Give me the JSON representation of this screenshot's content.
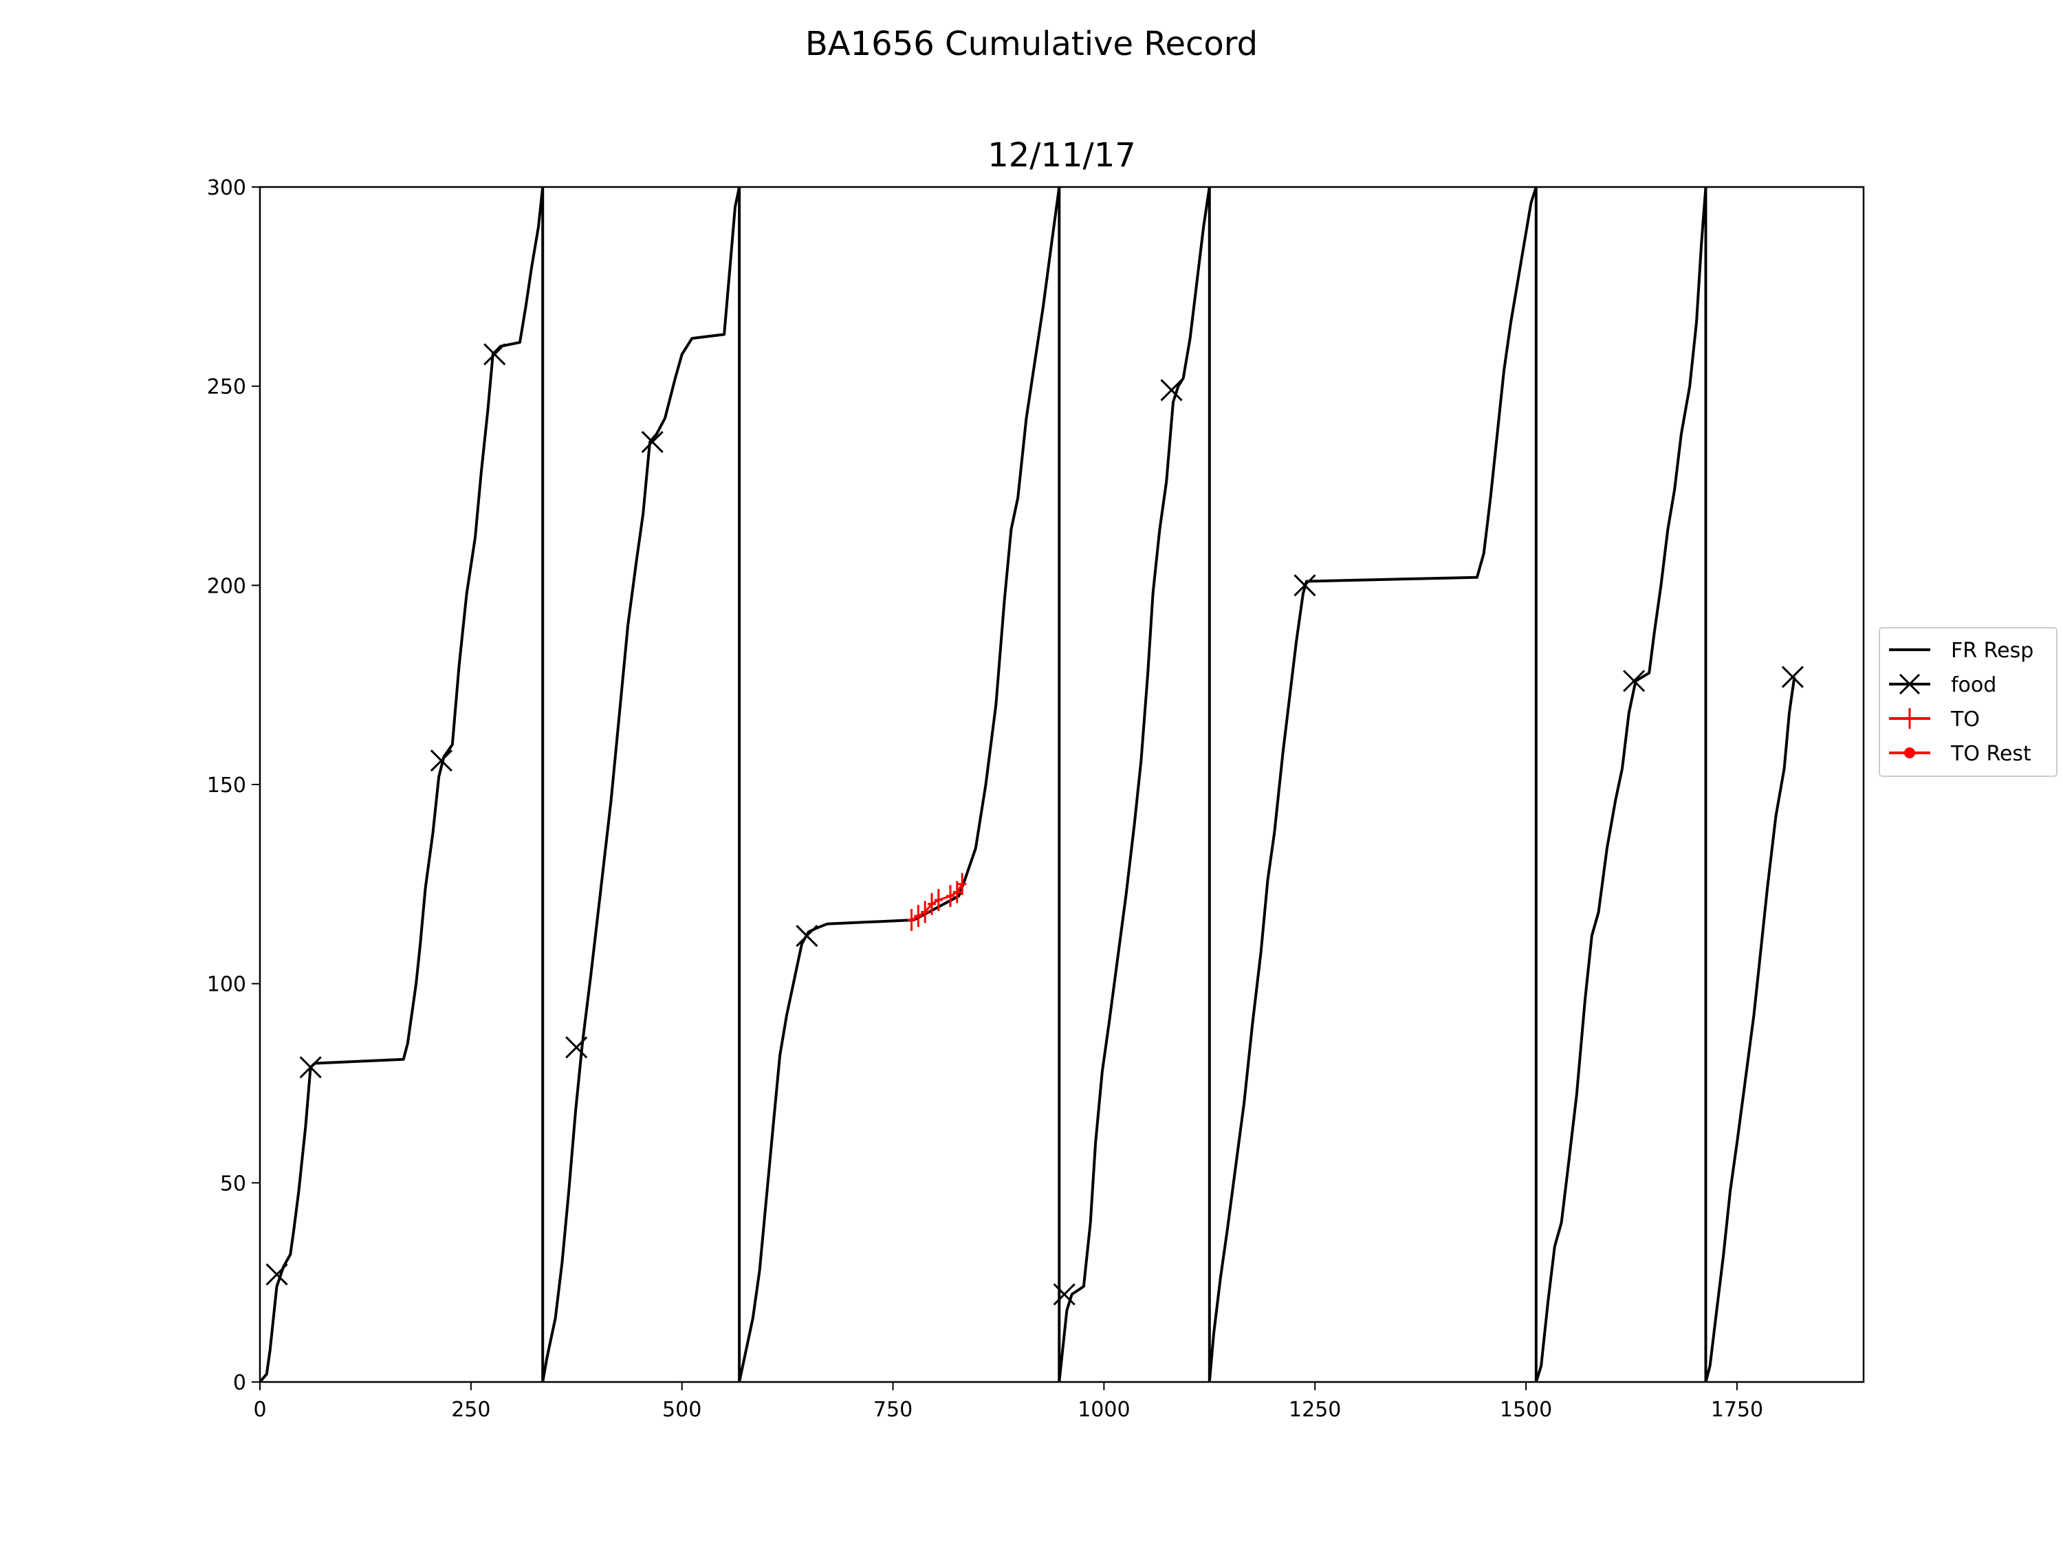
{
  "figure": {
    "suptitle": "BA1656 Cumulative Record"
  },
  "chart_data": {
    "type": "line",
    "title": "12/11/17",
    "xlabel": "",
    "ylabel": "",
    "xlim": [
      0,
      1900
    ],
    "ylim": [
      0,
      300
    ],
    "x_ticks": [
      0,
      250,
      500,
      750,
      1000,
      1250,
      1500,
      1750
    ],
    "x_tick_labels": [
      "0",
      "250",
      "500",
      "750",
      "1000",
      "1250",
      "1500",
      "1750"
    ],
    "y_ticks": [
      0,
      50,
      100,
      150,
      200,
      250,
      300
    ],
    "y_tick_labels": [
      "0",
      "50",
      "100",
      "150",
      "200",
      "250",
      "300"
    ],
    "grid": false,
    "legend_position": "outside-right",
    "legend": [
      {
        "label": "FR Resp",
        "color": "#000000",
        "marker": "line"
      },
      {
        "label": "food",
        "color": "#000000",
        "marker": "x"
      },
      {
        "label": "TO",
        "color": "#ff0000",
        "marker": "plus"
      },
      {
        "label": "TO Rest",
        "color": "#ff0000",
        "marker": "dot"
      }
    ],
    "series": [
      {
        "name": "FR Resp",
        "color": "#000000",
        "points": [
          [
            0,
            0
          ],
          [
            8,
            2
          ],
          [
            12,
            8
          ],
          [
            16,
            16
          ],
          [
            20,
            24
          ],
          [
            28,
            29
          ],
          [
            36,
            32
          ],
          [
            40,
            38
          ],
          [
            46,
            48
          ],
          [
            54,
            64
          ],
          [
            60,
            79
          ],
          [
            65,
            80
          ],
          [
            170,
            81
          ],
          [
            175,
            85
          ],
          [
            185,
            100
          ],
          [
            190,
            110
          ],
          [
            196,
            124
          ],
          [
            205,
            138
          ],
          [
            212,
            152
          ],
          [
            218,
            157
          ],
          [
            228,
            160
          ],
          [
            236,
            180
          ],
          [
            245,
            198
          ],
          [
            255,
            212
          ],
          [
            262,
            228
          ],
          [
            270,
            244
          ],
          [
            276,
            258
          ],
          [
            285,
            260
          ],
          [
            308,
            261
          ],
          [
            315,
            270
          ],
          [
            322,
            280
          ],
          [
            330,
            290
          ],
          [
            335,
            300
          ],
          [
            335,
            0
          ],
          [
            340,
            6
          ],
          [
            350,
            16
          ],
          [
            358,
            30
          ],
          [
            366,
            48
          ],
          [
            374,
            68
          ],
          [
            382,
            85
          ],
          [
            392,
            102
          ],
          [
            404,
            124
          ],
          [
            416,
            146
          ],
          [
            426,
            168
          ],
          [
            436,
            190
          ],
          [
            446,
            206
          ],
          [
            454,
            218
          ],
          [
            462,
            236
          ],
          [
            470,
            238
          ],
          [
            480,
            242
          ],
          [
            492,
            252
          ],
          [
            500,
            258
          ],
          [
            512,
            262
          ],
          [
            550,
            263
          ],
          [
            557,
            280
          ],
          [
            563,
            295
          ],
          [
            568,
            300
          ],
          [
            568,
            0
          ],
          [
            574,
            6
          ],
          [
            584,
            16
          ],
          [
            592,
            28
          ],
          [
            600,
            46
          ],
          [
            608,
            64
          ],
          [
            616,
            82
          ],
          [
            624,
            92
          ],
          [
            632,
            100
          ],
          [
            642,
            110
          ],
          [
            650,
            113
          ],
          [
            660,
            114
          ],
          [
            672,
            115
          ],
          [
            775,
            116
          ],
          [
            828,
            122
          ],
          [
            835,
            126
          ],
          [
            848,
            134
          ],
          [
            860,
            150
          ],
          [
            872,
            170
          ],
          [
            882,
            196
          ],
          [
            890,
            214
          ],
          [
            898,
            222
          ],
          [
            908,
            242
          ],
          [
            918,
            256
          ],
          [
            928,
            270
          ],
          [
            938,
            286
          ],
          [
            947,
            300
          ],
          [
            947,
            0
          ],
          [
            950,
            6
          ],
          [
            956,
            18
          ],
          [
            962,
            22
          ],
          [
            976,
            24
          ],
          [
            984,
            40
          ],
          [
            990,
            60
          ],
          [
            998,
            78
          ],
          [
            1006,
            90
          ],
          [
            1016,
            106
          ],
          [
            1026,
            122
          ],
          [
            1036,
            140
          ],
          [
            1044,
            156
          ],
          [
            1052,
            178
          ],
          [
            1058,
            198
          ],
          [
            1066,
            214
          ],
          [
            1074,
            226
          ],
          [
            1082,
            246
          ],
          [
            1088,
            250
          ],
          [
            1094,
            252
          ],
          [
            1102,
            262
          ],
          [
            1110,
            276
          ],
          [
            1118,
            290
          ],
          [
            1125,
            300
          ],
          [
            1125,
            0
          ],
          [
            1130,
            12
          ],
          [
            1138,
            26
          ],
          [
            1146,
            38
          ],
          [
            1156,
            54
          ],
          [
            1166,
            70
          ],
          [
            1176,
            90
          ],
          [
            1186,
            108
          ],
          [
            1194,
            126
          ],
          [
            1202,
            138
          ],
          [
            1212,
            158
          ],
          [
            1220,
            172
          ],
          [
            1228,
            186
          ],
          [
            1236,
            198
          ],
          [
            1240,
            201
          ],
          [
            1442,
            202
          ],
          [
            1450,
            208
          ],
          [
            1458,
            222
          ],
          [
            1466,
            238
          ],
          [
            1474,
            254
          ],
          [
            1482,
            266
          ],
          [
            1490,
            276
          ],
          [
            1498,
            286
          ],
          [
            1506,
            296
          ],
          [
            1512,
            300
          ],
          [
            1512,
            0
          ],
          [
            1518,
            4
          ],
          [
            1526,
            20
          ],
          [
            1534,
            34
          ],
          [
            1542,
            40
          ],
          [
            1550,
            54
          ],
          [
            1560,
            72
          ],
          [
            1570,
            96
          ],
          [
            1578,
            112
          ],
          [
            1586,
            118
          ],
          [
            1596,
            134
          ],
          [
            1606,
            146
          ],
          [
            1614,
            154
          ],
          [
            1622,
            168
          ],
          [
            1630,
            176
          ],
          [
            1646,
            178
          ],
          [
            1652,
            188
          ],
          [
            1660,
            200
          ],
          [
            1668,
            214
          ],
          [
            1676,
            224
          ],
          [
            1684,
            238
          ],
          [
            1694,
            250
          ],
          [
            1702,
            266
          ],
          [
            1708,
            286
          ],
          [
            1713,
            300
          ],
          [
            1713,
            0
          ],
          [
            1718,
            4
          ],
          [
            1726,
            18
          ],
          [
            1734,
            32
          ],
          [
            1742,
            48
          ],
          [
            1750,
            60
          ],
          [
            1760,
            76
          ],
          [
            1770,
            92
          ],
          [
            1778,
            108
          ],
          [
            1786,
            124
          ],
          [
            1796,
            142
          ],
          [
            1806,
            154
          ],
          [
            1812,
            168
          ],
          [
            1818,
            177
          ]
        ]
      },
      {
        "name": "food",
        "color": "#000000",
        "marker": "x",
        "points": [
          [
            20,
            27
          ],
          [
            60,
            79
          ],
          [
            215,
            156
          ],
          [
            278,
            258
          ],
          [
            375,
            84
          ],
          [
            465,
            236
          ],
          [
            648,
            112
          ],
          [
            953,
            22
          ],
          [
            1080,
            249
          ],
          [
            1238,
            200
          ],
          [
            1628,
            176
          ],
          [
            1816,
            177
          ]
        ]
      },
      {
        "name": "TO",
        "color": "#ff0000",
        "marker": "plus",
        "points": [
          [
            772,
            116
          ],
          [
            780,
            117
          ],
          [
            788,
            118
          ],
          [
            796,
            120
          ],
          [
            804,
            121
          ],
          [
            818,
            122
          ],
          [
            826,
            123
          ],
          [
            832,
            125
          ]
        ]
      },
      {
        "name": "TO Rest",
        "color": "#ff0000",
        "marker": "dot",
        "points": []
      }
    ]
  }
}
